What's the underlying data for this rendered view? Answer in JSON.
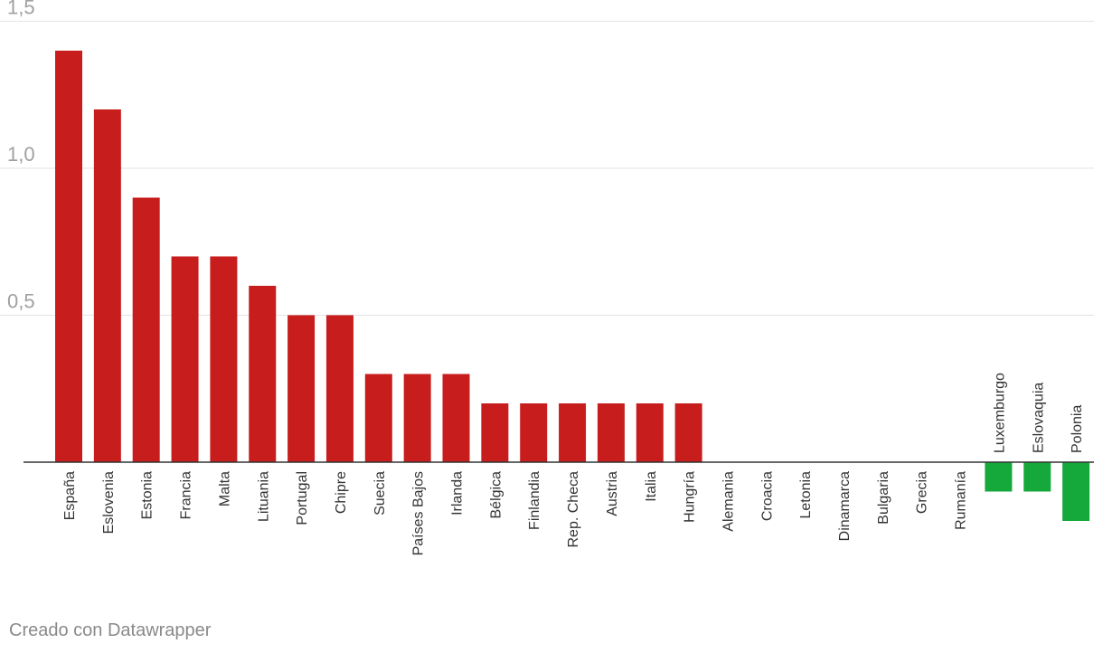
{
  "chart_data": {
    "type": "bar",
    "categories": [
      "España",
      "Eslovenia",
      "Estonia",
      "Francia",
      "Malta",
      "Lituania",
      "Portugal",
      "Chipre",
      "Suecia",
      "Países Bajos",
      "Irlanda",
      "Bélgica",
      "Finlandia",
      "Rep. Checa",
      "Austria",
      "Italia",
      "Hungría",
      "Alemania",
      "Croacia",
      "Letonia",
      "Dinamarca",
      "Bulgaria",
      "Grecia",
      "Rumanía",
      "Luxemburgo",
      "Eslovaquia",
      "Polonia"
    ],
    "values": [
      1.4,
      1.2,
      0.9,
      0.7,
      0.7,
      0.6,
      0.5,
      0.5,
      0.3,
      0.3,
      0.3,
      0.2,
      0.2,
      0.2,
      0.2,
      0.2,
      0.2,
      0,
      0,
      0,
      0,
      0,
      0,
      0,
      -0.1,
      -0.1,
      -0.2
    ],
    "yticks": [
      0.5,
      1.0,
      1.5
    ],
    "ytick_labels": [
      "0,5",
      "1,0",
      "1,5"
    ],
    "ylim": [
      -0.2,
      1.5
    ],
    "grid": true,
    "colors": {
      "positive": "#c71e1d",
      "negative": "#15a83a",
      "grid": "#e3e3e3",
      "baseline": "#333333",
      "tick_text": "#a0a0a0",
      "label_text": "#333333"
    }
  },
  "footer": {
    "credit": "Creado con Datawrapper"
  }
}
